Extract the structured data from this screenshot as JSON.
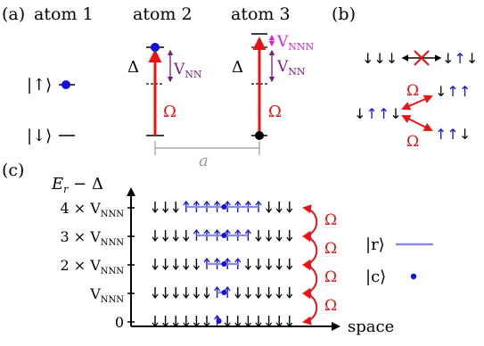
{
  "panels": {
    "a": "(a)",
    "b": "(b)",
    "c": "(c)"
  },
  "atoms": [
    "atom 1",
    "atom 2",
    "atom 3"
  ],
  "kets": {
    "up": "|↑⟩",
    "down": "|↓⟩",
    "r": "|r⟩",
    "c": "|c⟩"
  },
  "labels": {
    "delta": "Δ",
    "omega": "Ω",
    "vnn_V": "V",
    "vnn_sub": "NN",
    "vnnn_V": "V",
    "vnnn_sub": "NNN",
    "spacing": "a",
    "energy_axis": "E",
    "energy_sub": "r",
    "energy_rest": " − Δ",
    "space": "space"
  },
  "ticks": [
    {
      "pre": "4 × V",
      "sub": "NNN"
    },
    {
      "pre": "3 × V",
      "sub": "NNN"
    },
    {
      "pre": "2 × V",
      "sub": "NNN"
    },
    {
      "pre": "V",
      "sub": "NNN"
    },
    {
      "pre": "0",
      "sub": ""
    }
  ],
  "panel_b": {
    "top_left": "↓↓↓",
    "top_right": "↓↑↓",
    "left": "↓↑↓",
    "right_top": "↓↑↑",
    "right_bottom": "↑↑↓"
  },
  "colors": {
    "red": "#ee1111",
    "blue": "#1111dd",
    "purple": "#7a1e7a",
    "magenta": "#e020e0",
    "gray": "#999999",
    "light_blue": "#8a8aee"
  }
}
